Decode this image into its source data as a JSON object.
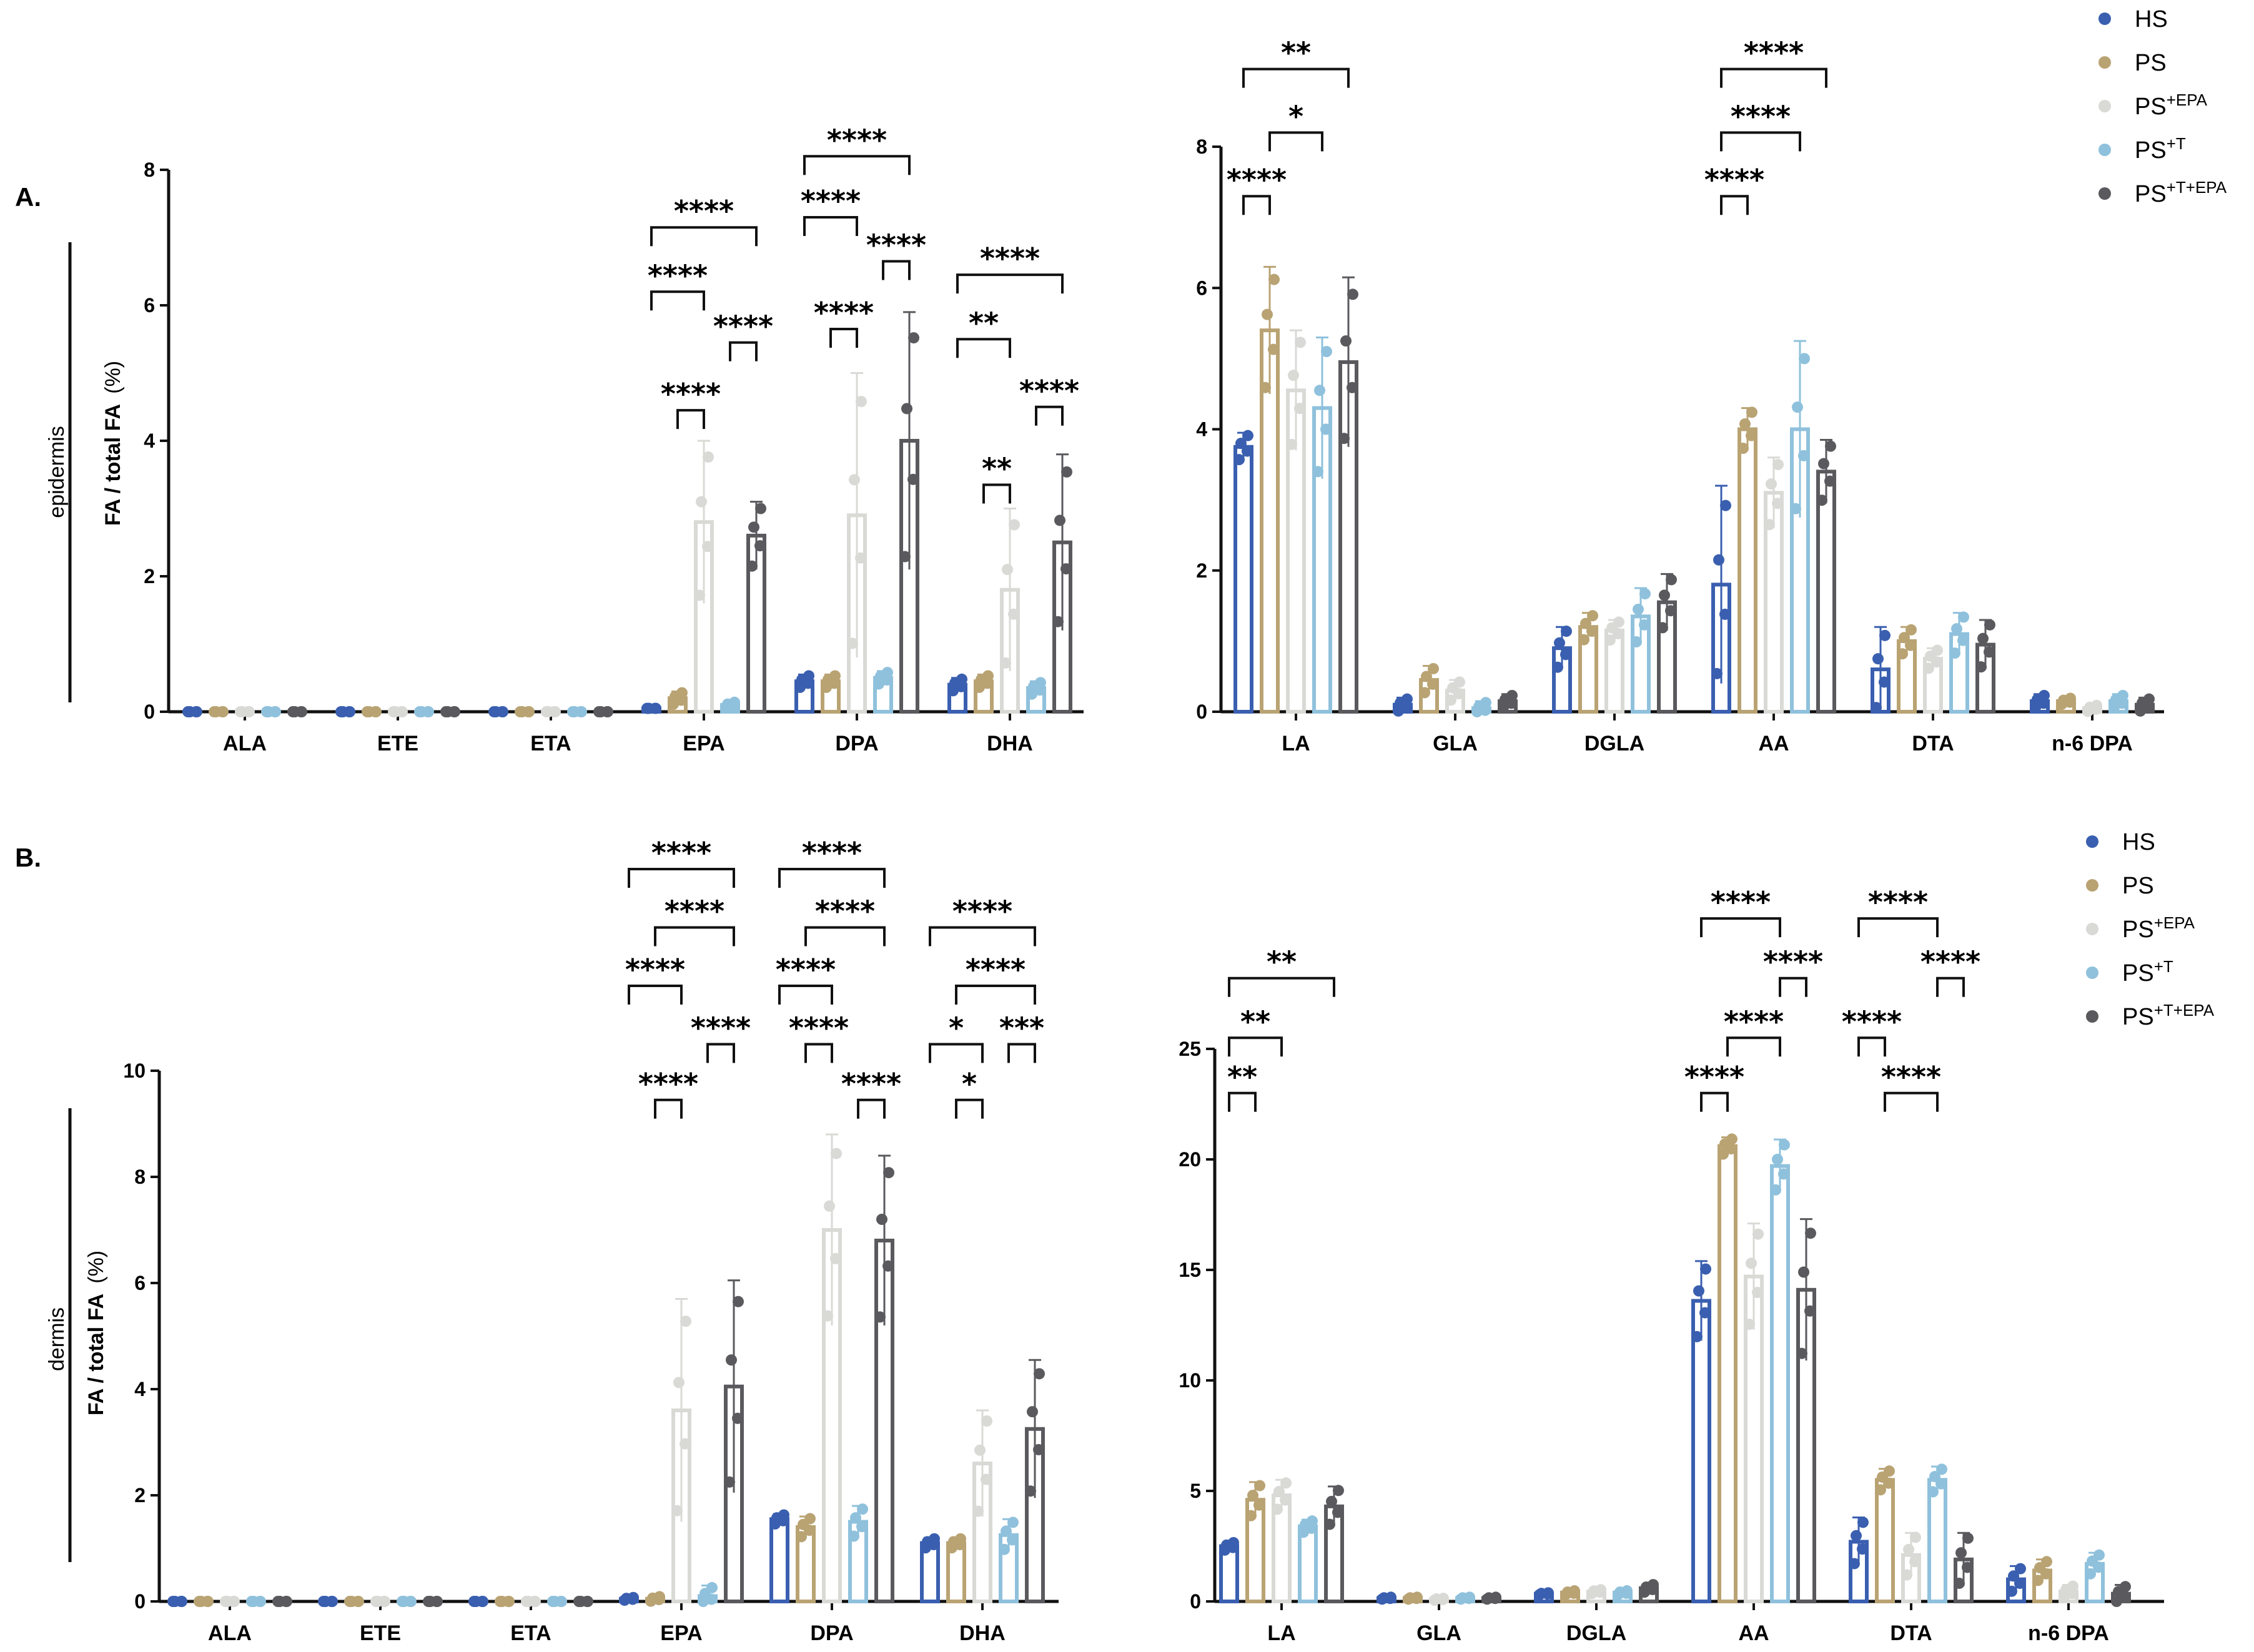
{
  "colors": {
    "HS": "#3a5fb0",
    "PS": "#b9a373",
    "PS+EPA": "#d9d9d6",
    "PS+T": "#8fc1dc",
    "PS+T+EPA": "#5a5a5e"
  },
  "legend": [
    {
      "key": "HS",
      "base": "HS",
      "sup": ""
    },
    {
      "key": "PS",
      "base": "PS",
      "sup": ""
    },
    {
      "key": "PS+EPA",
      "base": "PS",
      "sup": "+EPA"
    },
    {
      "key": "PS+T",
      "base": "PS",
      "sup": "+T"
    },
    {
      "key": "PS+T+EPA",
      "base": "PS",
      "sup": "+T+EPA"
    }
  ],
  "panels": [
    {
      "label": "A.",
      "region": "epidermis"
    },
    {
      "label": "B.",
      "region": "dermis"
    }
  ],
  "ylabel": {
    "main": "FA / total FA",
    "unit": "(%)"
  },
  "chart_data": [
    {
      "id": "A-n3",
      "panel": "A.",
      "type": "bar",
      "region": "epidermis",
      "ylabel": "FA / total FA (%)",
      "ylim": [
        0,
        8
      ],
      "yticks": [
        0,
        2,
        4,
        6,
        8
      ],
      "categories": [
        "ALA",
        "ETE",
        "ETA",
        "EPA",
        "DPA",
        "DHA"
      ],
      "series": [
        {
          "name": "HS",
          "values": [
            0.0,
            0.0,
            0.0,
            0.05,
            0.45,
            0.4
          ],
          "errors": [
            0,
            0,
            0,
            0,
            0.1,
            0.1
          ]
        },
        {
          "name": "PS",
          "values": [
            0.0,
            0.0,
            0.0,
            0.2,
            0.45,
            0.45
          ],
          "errors": [
            0,
            0,
            0,
            0.1,
            0.1,
            0.1
          ]
        },
        {
          "name": "PS+EPA",
          "values": [
            0.0,
            0.0,
            0.0,
            2.8,
            2.9,
            1.8
          ],
          "errors": [
            0,
            0,
            0,
            1.2,
            2.1,
            1.2
          ]
        },
        {
          "name": "PS+T",
          "values": [
            0.0,
            0.0,
            0.0,
            0.1,
            0.5,
            0.35
          ],
          "errors": [
            0,
            0,
            0,
            0.05,
            0.1,
            0.1
          ]
        },
        {
          "name": "PS+T+EPA",
          "values": [
            0.0,
            0.0,
            0.0,
            2.6,
            4.0,
            2.5
          ],
          "errors": [
            0,
            0,
            0,
            0.5,
            1.9,
            1.3
          ]
        }
      ],
      "significance": [
        {
          "cat": "EPA",
          "from": "PS",
          "to": "PS+EPA",
          "label": "****",
          "y": 4.45
        },
        {
          "cat": "EPA",
          "from": "PS+T",
          "to": "PS+T+EPA",
          "label": "****",
          "y": 5.45
        },
        {
          "cat": "EPA",
          "from": "HS",
          "to": "PS+EPA",
          "label": "****",
          "y": 6.2
        },
        {
          "cat": "EPA",
          "from": "HS",
          "to": "PS+T+EPA",
          "label": "****",
          "y": 7.15
        },
        {
          "cat": "DPA",
          "from": "PS",
          "to": "PS+EPA",
          "label": "****",
          "y": 5.65
        },
        {
          "cat": "DPA",
          "from": "PS+T",
          "to": "PS+T+EPA",
          "label": "****",
          "y": 6.65
        },
        {
          "cat": "DPA",
          "from": "HS",
          "to": "PS+EPA",
          "label": "****",
          "y": 7.3
        },
        {
          "cat": "DPA",
          "from": "HS",
          "to": "PS+T+EPA",
          "label": "****",
          "y": 8.2
        },
        {
          "cat": "DHA",
          "from": "PS",
          "to": "PS+EPA",
          "label": "**",
          "y": 3.35
        },
        {
          "cat": "DHA",
          "from": "PS+T",
          "to": "PS+T+EPA",
          "label": "****",
          "y": 4.5
        },
        {
          "cat": "DHA",
          "from": "HS",
          "to": "PS+EPA",
          "label": "**",
          "y": 5.5
        },
        {
          "cat": "DHA",
          "from": "HS",
          "to": "PS+T+EPA",
          "label": "****",
          "y": 6.45
        }
      ]
    },
    {
      "id": "A-n6",
      "panel": "A.",
      "type": "bar",
      "region": "epidermis",
      "ylim": [
        0,
        8
      ],
      "yticks": [
        0,
        2,
        4,
        6,
        8
      ],
      "categories": [
        "LA",
        "GLA",
        "DGLA",
        "AA",
        "DTA",
        "n-6 DPA"
      ],
      "series": [
        {
          "name": "HS",
          "values": [
            3.75,
            0.1,
            0.9,
            1.8,
            0.6,
            0.15
          ],
          "errors": [
            0.2,
            0.1,
            0.3,
            1.4,
            0.6,
            0.1
          ]
        },
        {
          "name": "PS",
          "values": [
            5.4,
            0.45,
            1.2,
            4.0,
            1.0,
            0.15
          ],
          "errors": [
            0.9,
            0.2,
            0.2,
            0.3,
            0.2,
            0.05
          ]
        },
        {
          "name": "PS+EPA",
          "values": [
            4.55,
            0.3,
            1.15,
            3.1,
            0.75,
            0.05
          ],
          "errors": [
            0.85,
            0.15,
            0.15,
            0.5,
            0.15,
            0.05
          ]
        },
        {
          "name": "PS+T",
          "values": [
            4.3,
            0.05,
            1.35,
            4.0,
            1.1,
            0.15
          ],
          "errors": [
            1.0,
            0.1,
            0.4,
            1.25,
            0.3,
            0.1
          ]
        },
        {
          "name": "PS+T+EPA",
          "values": [
            4.95,
            0.15,
            1.55,
            3.4,
            0.95,
            0.1
          ],
          "errors": [
            1.2,
            0.1,
            0.4,
            0.45,
            0.35,
            0.1
          ]
        }
      ],
      "significance": [
        {
          "cat": "LA",
          "from": "HS",
          "to": "PS",
          "label": "****",
          "y": 7.3
        },
        {
          "cat": "LA",
          "from": "PS",
          "to": "PS+T",
          "label": "*",
          "y": 8.2
        },
        {
          "cat": "LA",
          "from": "HS",
          "to": "PS+T+EPA",
          "label": "**",
          "y": 9.1
        },
        {
          "cat": "AA",
          "from": "HS",
          "to": "PS",
          "label": "****",
          "y": 7.3
        },
        {
          "cat": "AA",
          "from": "HS",
          "to": "PS+T",
          "label": "****",
          "y": 8.2
        },
        {
          "cat": "AA",
          "from": "HS",
          "to": "PS+T+EPA",
          "label": "****",
          "y": 9.1
        }
      ]
    },
    {
      "id": "B-n3",
      "panel": "B.",
      "type": "bar",
      "region": "dermis",
      "ylabel": "FA / total FA (%)",
      "ylim": [
        0,
        10
      ],
      "yticks": [
        0,
        2,
        4,
        6,
        8,
        10
      ],
      "categories": [
        "ALA",
        "ETE",
        "ETA",
        "EPA",
        "DPA",
        "DHA"
      ],
      "series": [
        {
          "name": "HS",
          "values": [
            0.0,
            0.0,
            0.0,
            0.05,
            1.55,
            1.1
          ],
          "errors": [
            0,
            0,
            0,
            0.03,
            0.1,
            0.1
          ]
        },
        {
          "name": "PS",
          "values": [
            0.0,
            0.0,
            0.0,
            0.05,
            1.4,
            1.1
          ],
          "errors": [
            0,
            0,
            0,
            0.05,
            0.2,
            0.1
          ]
        },
        {
          "name": "PS+EPA",
          "values": [
            0.0,
            0.0,
            0.0,
            3.6,
            7.0,
            2.6
          ],
          "errors": [
            0,
            0,
            0,
            2.1,
            1.8,
            1.0
          ]
        },
        {
          "name": "PS+T",
          "values": [
            0.0,
            0.0,
            0.0,
            0.1,
            1.5,
            1.25
          ],
          "errors": [
            0,
            0,
            0,
            0.2,
            0.3,
            0.3
          ]
        },
        {
          "name": "PS+T+EPA",
          "values": [
            0.0,
            0.0,
            0.0,
            4.05,
            6.8,
            3.25
          ],
          "errors": [
            0,
            0,
            0,
            2.0,
            1.6,
            1.3
          ]
        }
      ],
      "significance": [
        {
          "cat": "EPA",
          "from": "PS",
          "to": "PS+EPA",
          "label": "****",
          "y": 9.45
        },
        {
          "cat": "EPA",
          "from": "PS+T",
          "to": "PS+T+EPA",
          "label": "****",
          "y": 10.5
        },
        {
          "cat": "EPA",
          "from": "HS",
          "to": "PS+EPA",
          "label": "****",
          "y": 11.6
        },
        {
          "cat": "EPA",
          "from": "PS",
          "to": "PS+T+EPA",
          "label": "****",
          "y": 12.7
        },
        {
          "cat": "EPA",
          "from": "HS",
          "to": "PS+T+EPA",
          "label": "****",
          "y": 13.8
        },
        {
          "cat": "DPA",
          "from": "PS+T",
          "to": "PS+T+EPA",
          "label": "****",
          "y": 9.45
        },
        {
          "cat": "DPA",
          "from": "PS",
          "to": "PS+EPA",
          "label": "****",
          "y": 10.5
        },
        {
          "cat": "DPA",
          "from": "HS",
          "to": "PS+EPA",
          "label": "****",
          "y": 11.6
        },
        {
          "cat": "DPA",
          "from": "PS",
          "to": "PS+T+EPA",
          "label": "****",
          "y": 12.7
        },
        {
          "cat": "DPA",
          "from": "HS",
          "to": "PS+T+EPA",
          "label": "****",
          "y": 13.8
        },
        {
          "cat": "DHA",
          "from": "PS",
          "to": "PS+EPA",
          "label": "*",
          "y": 9.45
        },
        {
          "cat": "DHA",
          "from": "HS",
          "to": "PS+EPA",
          "label": "*",
          "y": 10.5
        },
        {
          "cat": "DHA",
          "from": "PS+T",
          "to": "PS+T+EPA",
          "label": "***",
          "y": 10.5
        },
        {
          "cat": "DHA",
          "from": "PS",
          "to": "PS+T+EPA",
          "label": "****",
          "y": 11.6
        },
        {
          "cat": "DHA",
          "from": "HS",
          "to": "PS+T+EPA",
          "label": "****",
          "y": 12.7
        }
      ]
    },
    {
      "id": "B-n6",
      "panel": "B.",
      "type": "bar",
      "region": "dermis",
      "ylim": [
        0,
        25
      ],
      "yticks": [
        0,
        5,
        10,
        15,
        20,
        25
      ],
      "categories": [
        "LA",
        "GLA",
        "DGLA",
        "AA",
        "DTA",
        "n-6 DPA"
      ],
      "series": [
        {
          "name": "HS",
          "values": [
            2.5,
            0.15,
            0.35,
            13.6,
            2.7,
            1.0
          ],
          "errors": [
            0.2,
            0.05,
            0.05,
            1.8,
            1.1,
            0.6
          ]
        },
        {
          "name": "PS",
          "values": [
            4.6,
            0.15,
            0.4,
            20.6,
            5.5,
            1.4
          ],
          "errors": [
            0.8,
            0.05,
            0.1,
            0.4,
            0.5,
            0.5
          ]
        },
        {
          "name": "PS+EPA",
          "values": [
            4.8,
            0.1,
            0.45,
            14.7,
            2.1,
            0.45
          ],
          "errors": [
            0.7,
            0.05,
            0.1,
            2.4,
            1.0,
            0.3
          ]
        },
        {
          "name": "PS+T",
          "values": [
            3.4,
            0.15,
            0.4,
            19.7,
            5.5,
            1.7
          ],
          "errors": [
            0.3,
            0.05,
            0.1,
            1.2,
            0.6,
            0.5
          ]
        },
        {
          "name": "PS+T+EPA",
          "values": [
            4.3,
            0.15,
            0.6,
            14.1,
            1.9,
            0.35
          ],
          "errors": [
            0.9,
            0.05,
            0.2,
            3.2,
            1.2,
            0.4
          ]
        }
      ],
      "significance": [
        {
          "cat": "LA",
          "from": "HS",
          "to": "PS",
          "label": "**",
          "y": 23.0
        },
        {
          "cat": "LA",
          "from": "HS",
          "to": "PS+EPA",
          "label": "**",
          "y": 25.5
        },
        {
          "cat": "LA",
          "from": "HS",
          "to": "PS+T+EPA",
          "label": "**",
          "y": 28.2
        },
        {
          "cat": "AA",
          "from": "HS",
          "to": "PS",
          "label": "****",
          "y": 23.0
        },
        {
          "cat": "AA",
          "from": "PS",
          "to": "PS+T",
          "label": "****",
          "y": 25.5
        },
        {
          "cat": "AA",
          "from": "PS+T",
          "to": "PS+T+EPA",
          "label": "****",
          "y": 28.2
        },
        {
          "cat": "AA",
          "from": "HS",
          "to": "PS+T",
          "label": "****",
          "y": 30.9
        },
        {
          "cat": "DTA",
          "from": "PS",
          "to": "PS+T",
          "label": "****",
          "y": 23.0
        },
        {
          "cat": "DTA",
          "from": "HS",
          "to": "PS",
          "label": "****",
          "y": 25.5
        },
        {
          "cat": "DTA",
          "from": "PS+T",
          "to": "PS+T+EPA",
          "label": "****",
          "y": 28.2
        },
        {
          "cat": "DTA",
          "from": "HS",
          "to": "PS+T",
          "label": "****",
          "y": 30.9
        }
      ]
    }
  ]
}
